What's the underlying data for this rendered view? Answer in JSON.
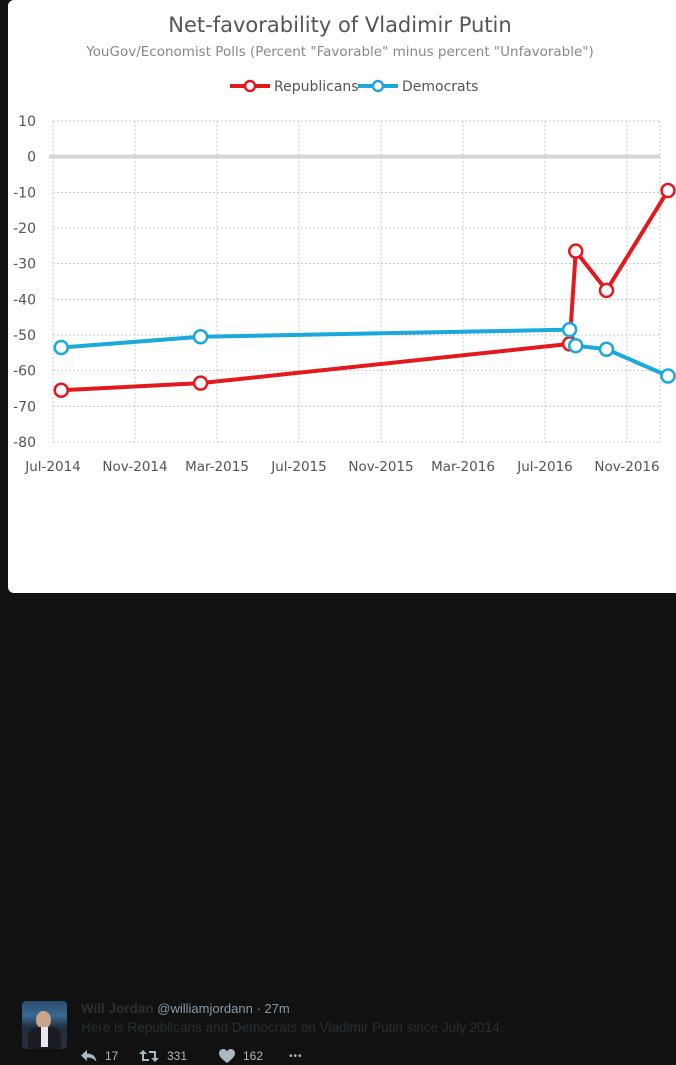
{
  "chart_data": {
    "type": "line",
    "title": "Net-favorability of Vladimir Putin",
    "subtitle": "YouGov/Economist Polls (Percent \"Favorable\" minus percent \"Unfavorable\")",
    "xlabel": "",
    "ylabel": "",
    "ylim": [
      -80,
      10
    ],
    "yticks": [
      "10",
      "0",
      "-10",
      "-20",
      "-30",
      "-40",
      "-50",
      "-60",
      "-70",
      "-80"
    ],
    "ytick_values": [
      10,
      0,
      -10,
      -20,
      -30,
      -40,
      -50,
      -60,
      -70,
      -80
    ],
    "xticks": [
      "Jul-2014",
      "Nov-2014",
      "Mar-2015",
      "Jul-2015",
      "Nov-2015",
      "Mar-2016",
      "Jul-2016",
      "Nov-2016"
    ],
    "xtick_months": [
      0,
      4,
      8,
      12,
      16,
      20,
      24,
      28
    ],
    "xlim_months": [
      -1,
      29.4
    ],
    "grid": true,
    "legend": "top-center",
    "series": [
      {
        "name": "Republicans",
        "color": "#e3191e",
        "x_months": [
          0.4,
          7.2,
          25.2,
          25.5,
          27.0,
          30.0
        ],
        "x_labels": [
          "Jul-2014",
          "Feb-2015",
          "Jul-2016",
          "Aug-2016",
          "Sep-2016",
          "Dec-2016"
        ],
        "values": [
          -65.5,
          -63.5,
          -52.5,
          -26.5,
          -37.5,
          -9.5
        ]
      },
      {
        "name": "Democrats",
        "color": "#1ba8dd",
        "x_months": [
          0.4,
          7.2,
          25.2,
          25.5,
          27.0,
          30.0
        ],
        "x_labels": [
          "Jul-2014",
          "Feb-2015",
          "Jul-2016",
          "Aug-2016",
          "Sep-2016",
          "Dec-2016"
        ],
        "values": [
          -53.5,
          -50.5,
          -48.5,
          -53.0,
          -54.0,
          -61.5
        ]
      }
    ]
  },
  "tweet": {
    "author_name": "Will Jordan",
    "handle": "@williamjordann",
    "separator": "·",
    "time": "27m",
    "text": "Here is Republicans and Democrats on Vladimir Putin since July 2014.",
    "reply_count": "17",
    "retweet_count": "331",
    "like_count": "162",
    "more_label": "•••",
    "icons": [
      "reply-icon",
      "retweet-icon",
      "heart-icon",
      "more-icon"
    ]
  }
}
